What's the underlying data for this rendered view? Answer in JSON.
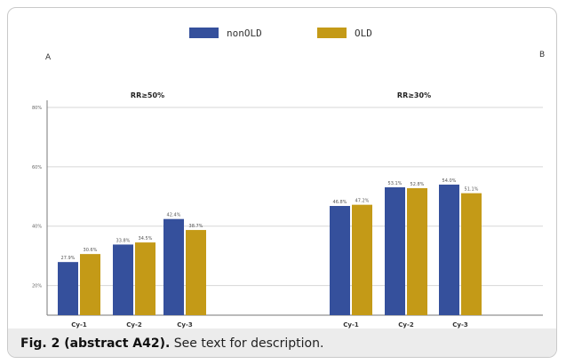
{
  "colors": {
    "nonOLD": "#35509c",
    "OLD": "#c49a17"
  },
  "legend": [
    {
      "name": "nonOLD",
      "color": "#35509c"
    },
    {
      "name": "OLD",
      "color": "#c49a17"
    }
  ],
  "caption": {
    "label": "Fig. 2 (abstract A42).",
    "text": "See text for description."
  },
  "chart_data": [
    {
      "type": "bar",
      "panel": "A",
      "title": "RR≥50%",
      "categories": [
        "Cy-1",
        "Cy-2",
        "Cy-3"
      ],
      "series": [
        {
          "name": "nonOLD",
          "values": [
            27.9,
            33.8,
            42.4
          ]
        },
        {
          "name": "OLD",
          "values": [
            30.6,
            34.5,
            38.7
          ]
        }
      ],
      "value_labels": {
        "nonOLD": [
          "27.9%",
          "33.8%",
          "42.4%"
        ],
        "OLD": [
          "30.6%",
          "34.5%",
          "38.7%"
        ]
      },
      "yticks": [
        "80%",
        "60%",
        "40%",
        "20%"
      ],
      "ylim": [
        10,
        80
      ],
      "grid": true,
      "legend_position": "top"
    },
    {
      "type": "bar",
      "panel": "B",
      "title": "RR≥30%",
      "categories": [
        "Cy-1",
        "Cy-2",
        "Cy-3"
      ],
      "series": [
        {
          "name": "nonOLD",
          "values": [
            46.8,
            53.1,
            54.0
          ]
        },
        {
          "name": "OLD",
          "values": [
            47.2,
            52.8,
            51.1
          ]
        }
      ],
      "value_labels": {
        "nonOLD": [
          "46.8%",
          "53.1%",
          "54.0%"
        ],
        "OLD": [
          "47.2%",
          "52.8%",
          "51.1%"
        ]
      },
      "ylim": [
        10,
        80
      ],
      "grid": true,
      "legend_position": "top"
    }
  ]
}
